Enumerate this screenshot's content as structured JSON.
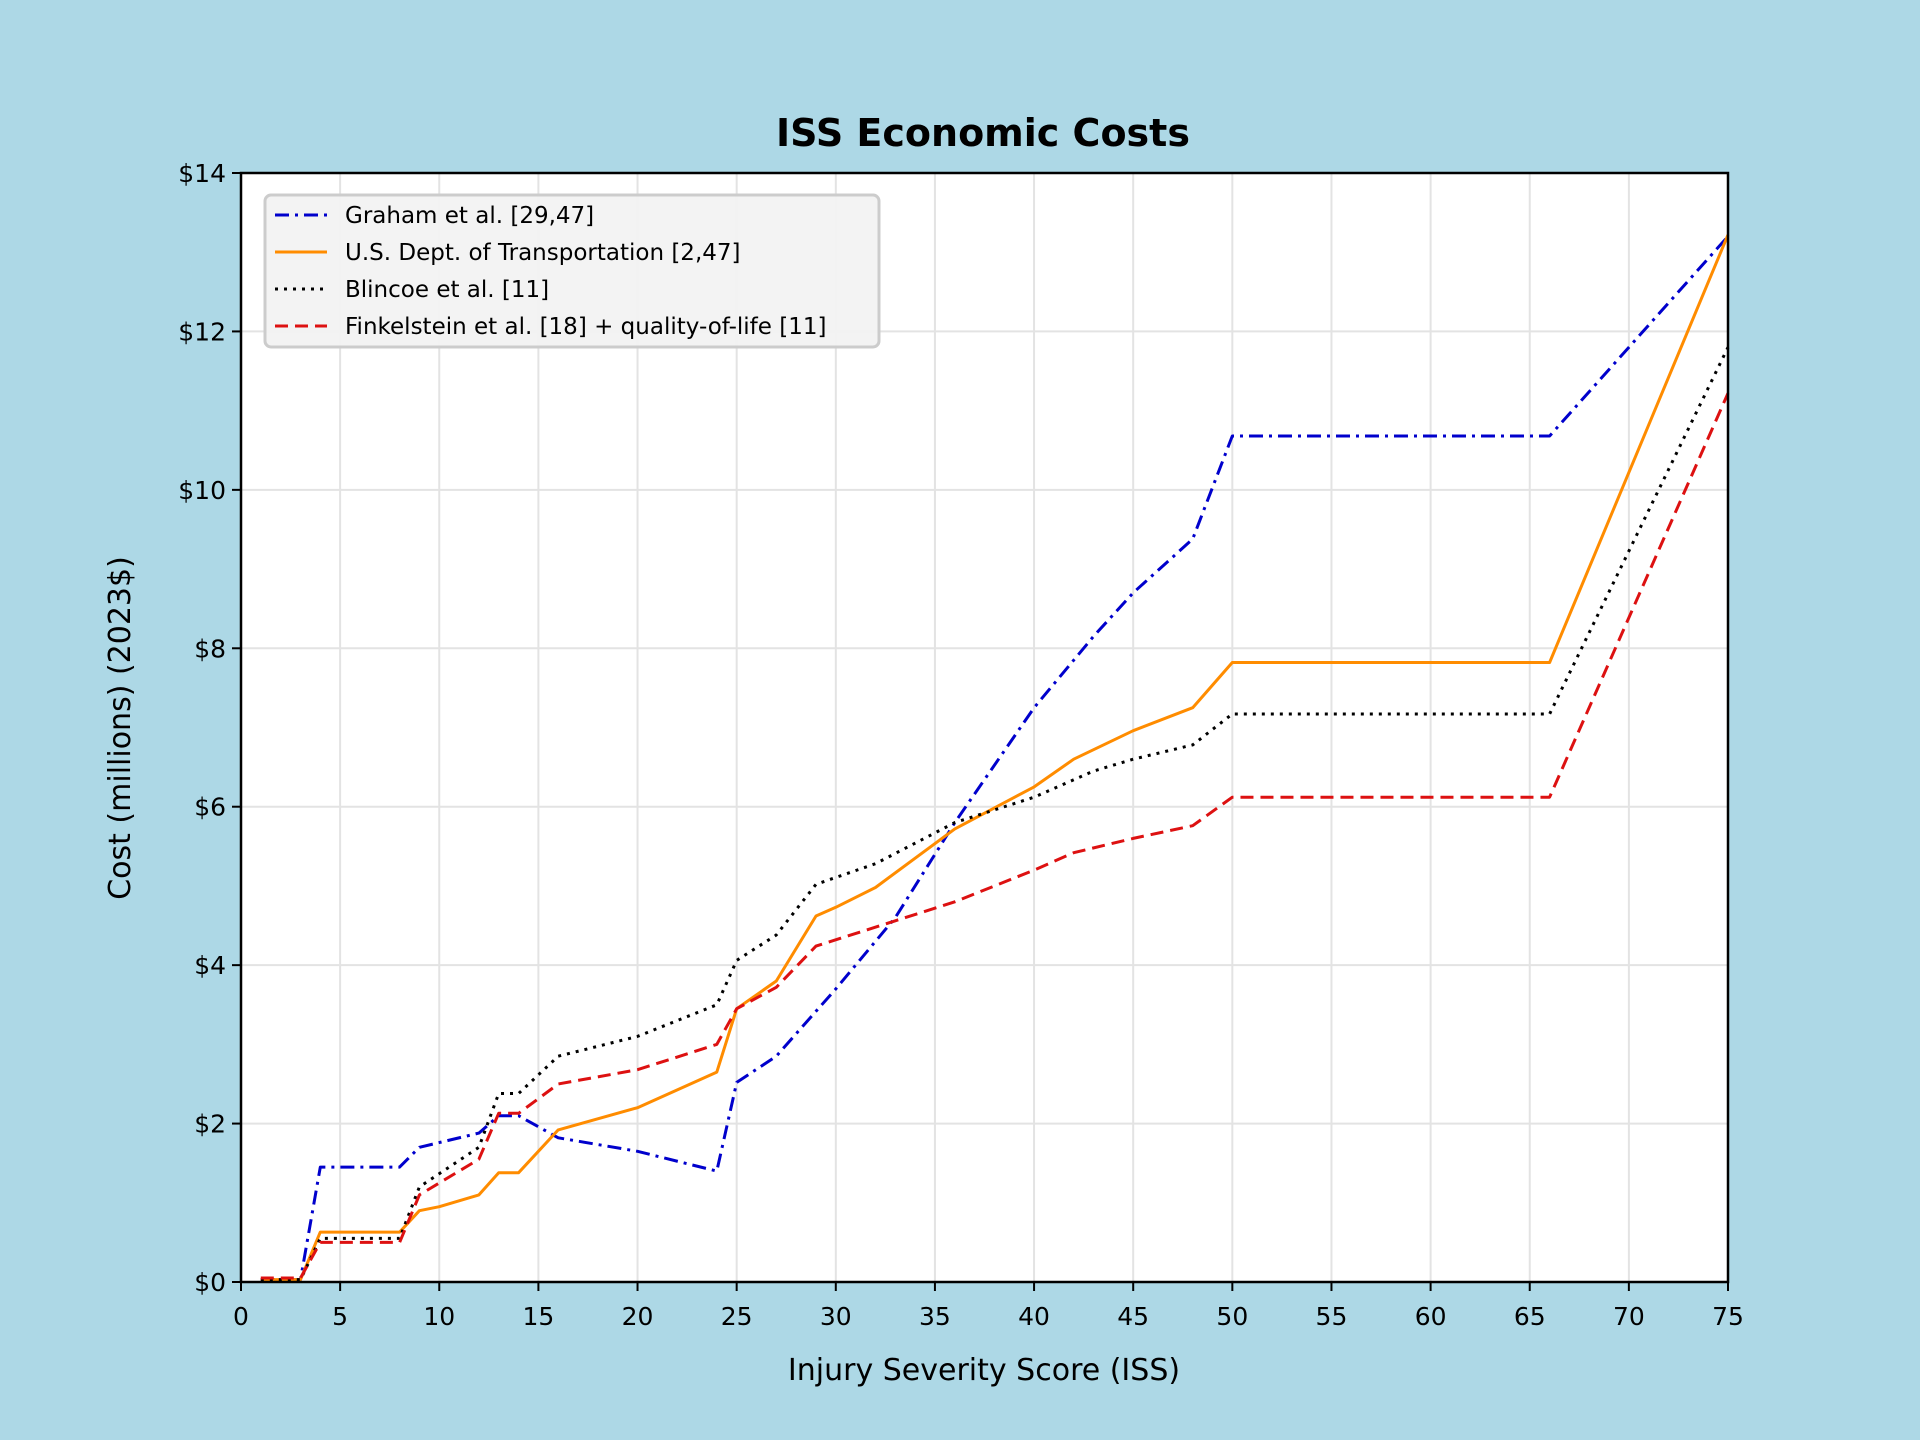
{
  "chart_data": {
    "type": "line",
    "title": "ISS Economic Costs",
    "xlabel": "Injury Severity Score (ISS)",
    "ylabel": "Cost (millions) (2023$)",
    "xlim": [
      0,
      75
    ],
    "ylim": [
      0,
      14
    ],
    "x_ticks": [
      0,
      5,
      10,
      15,
      20,
      25,
      30,
      35,
      40,
      45,
      50,
      55,
      60,
      65,
      70,
      75
    ],
    "y_ticks": [
      0,
      2,
      4,
      6,
      8,
      10,
      12,
      14
    ],
    "y_tick_labels": [
      "$0",
      "$2",
      "$4",
      "$6",
      "$8",
      "$10",
      "$12",
      "$14"
    ],
    "grid": true,
    "legend_position": "upper-left",
    "series": [
      {
        "name": "Graham et al. [29,47]",
        "color": "#0000cc",
        "style": "dashdot",
        "x": [
          1,
          3,
          4,
          8,
          9,
          12,
          13,
          14,
          16,
          20,
          24,
          25,
          27,
          30,
          33,
          36,
          40,
          43,
          45,
          48,
          50,
          66,
          75
        ],
        "y": [
          0.03,
          0.03,
          1.45,
          1.45,
          1.7,
          1.88,
          2.1,
          2.1,
          1.82,
          1.65,
          1.4,
          2.52,
          2.85,
          3.7,
          4.6,
          5.8,
          7.25,
          8.15,
          8.7,
          9.38,
          10.68,
          10.68,
          13.2
        ]
      },
      {
        "name": "U.S. Dept. of Transportation [2,47]",
        "color": "#ff8c00",
        "style": "solid",
        "x": [
          1,
          3,
          4,
          8,
          9,
          10,
          12,
          13,
          14,
          16,
          20,
          24,
          25,
          27,
          29,
          30,
          32,
          36,
          40,
          42,
          45,
          48,
          50,
          66,
          75
        ],
        "y": [
          0.03,
          0.03,
          0.63,
          0.63,
          0.9,
          0.95,
          1.1,
          1.38,
          1.38,
          1.92,
          2.2,
          2.65,
          3.45,
          3.8,
          4.62,
          4.73,
          4.98,
          5.72,
          6.25,
          6.6,
          6.96,
          7.25,
          7.82,
          7.82,
          13.22
        ]
      },
      {
        "name": "Blincoe et al. [11]",
        "color": "#000000",
        "style": "dotted",
        "x": [
          1,
          3,
          4,
          8,
          9,
          12,
          13,
          14,
          16,
          20,
          24,
          25,
          27,
          29,
          32,
          36,
          40,
          43,
          45,
          48,
          50,
          66,
          75
        ],
        "y": [
          0.03,
          0.03,
          0.55,
          0.55,
          1.2,
          1.7,
          2.38,
          2.38,
          2.85,
          3.1,
          3.5,
          4.06,
          4.38,
          5.02,
          5.28,
          5.8,
          6.12,
          6.45,
          6.6,
          6.78,
          7.17,
          7.17,
          11.8
        ]
      },
      {
        "name": "Finkelstein et al. [18] + quality-of-life [11]",
        "color": "#dd1111",
        "style": "dashed",
        "x": [
          1,
          3,
          4,
          8,
          9,
          12,
          13,
          14,
          16,
          20,
          24,
          25,
          27,
          29,
          33,
          36,
          40,
          42,
          45,
          48,
          50,
          66,
          75
        ],
        "y": [
          0.05,
          0.05,
          0.5,
          0.5,
          1.1,
          1.55,
          2.13,
          2.13,
          2.5,
          2.68,
          3.0,
          3.45,
          3.72,
          4.24,
          4.56,
          4.8,
          5.2,
          5.42,
          5.6,
          5.76,
          6.12,
          6.12,
          11.22
        ]
      }
    ]
  }
}
